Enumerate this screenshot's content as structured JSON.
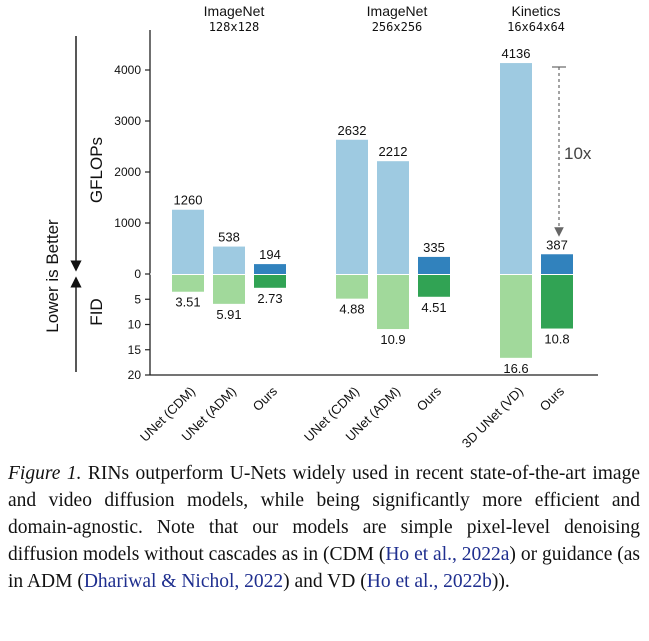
{
  "chart_data": {
    "type": "bar",
    "subtype": "mirrored",
    "groups": [
      {
        "title": "ImageNet",
        "subtitle": "128x128",
        "models": [
          "UNet (CDM)",
          "UNet (ADM)",
          "Ours"
        ]
      },
      {
        "title": "ImageNet",
        "subtitle": "256x256",
        "models": [
          "UNet (CDM)",
          "UNet (ADM)",
          "Ours"
        ]
      },
      {
        "title": "Kinetics",
        "subtitle": "16x64x64",
        "models": [
          "3D UNet (VD)",
          "Ours"
        ]
      }
    ],
    "categories": [
      "UNet (CDM)",
      "UNet (ADM)",
      "Ours",
      "UNet (CDM)",
      "UNet (ADM)",
      "Ours",
      "3D UNet (VD)",
      "Ours"
    ],
    "series": [
      {
        "name": "GFLOPs",
        "values": [
          1260,
          538,
          194,
          2632,
          2212,
          335,
          4136,
          387
        ]
      },
      {
        "name": "FID",
        "values": [
          3.51,
          5.91,
          2.73,
          4.88,
          10.9,
          4.51,
          16.6,
          10.8
        ]
      }
    ],
    "is_ours": [
      false,
      false,
      true,
      false,
      false,
      true,
      false,
      true
    ],
    "gflops_axis": {
      "label": "GFLOPs",
      "ticks": [
        0,
        1000,
        2000,
        3000,
        4000
      ],
      "range": [
        0,
        4600
      ]
    },
    "fid_axis": {
      "label": "FID",
      "ticks": [
        5,
        10,
        15,
        20
      ],
      "range": [
        0,
        20
      ]
    },
    "side_label": "Lower is Better",
    "annotation": "10x",
    "colors": {
      "gflops_baseline": "#9ecae1",
      "gflops_ours": "#3182bd",
      "fid_baseline": "#a1d99b",
      "fid_ours": "#31a354"
    }
  },
  "caption": {
    "label": "Figure 1.",
    "text_1": " RINs outperform U-Nets widely used in recent state-of-the-art image and video diffusion models, while being significantly more efficient and domain-agnostic.  Note that our models are simple pixel-level denoising diffusion models without cascades as in (CDM (",
    "cite_1": "Ho et al., 2022a",
    "text_2": ") or guidance (as in ADM (",
    "cite_2": "Dhariwal & Nichol, 2022",
    "text_3": ") and VD (",
    "cite_3": "Ho et al., 2022b",
    "text_4": "))."
  }
}
